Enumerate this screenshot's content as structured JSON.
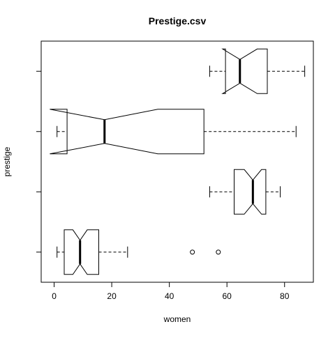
{
  "chart_data": {
    "type": "boxplot",
    "title": "Prestige.csv",
    "xlabel": "women",
    "ylabel": "prestige",
    "orientation": "horizontal",
    "notched": true,
    "xlim": [
      -4.5,
      90
    ],
    "x_ticks": [
      0,
      20,
      40,
      60,
      80
    ],
    "x_tick_labels": [
      "0",
      "20",
      "40",
      "60",
      "80"
    ],
    "y_tick_labels": [],
    "boxes": [
      {
        "whisker_low": 1,
        "q1": 3.5,
        "notch_low": 6.5,
        "median": 9,
        "notch_high": 11.5,
        "q3": 15.5,
        "whisker_high": 25.5,
        "outliers": [
          48,
          57
        ]
      },
      {
        "whisker_low": 54,
        "q1": 62.5,
        "notch_low": 66,
        "median": 69,
        "notch_high": 72,
        "q3": 73.5,
        "whisker_high": 78.5,
        "outliers": []
      },
      {
        "whisker_low": 1,
        "q1": 4.5,
        "notch_low": -1.5,
        "median": 17.5,
        "notch_high": 36,
        "q3": 52,
        "whisker_high": 84,
        "outliers": []
      },
      {
        "whisker_low": 54,
        "q1": 59.5,
        "notch_low": 58.5,
        "median": 64.5,
        "notch_high": 70.5,
        "q3": 74,
        "whisker_high": 87,
        "outliers": []
      }
    ],
    "colors": {
      "stroke": "#000000",
      "fill": "#ffffff"
    }
  }
}
